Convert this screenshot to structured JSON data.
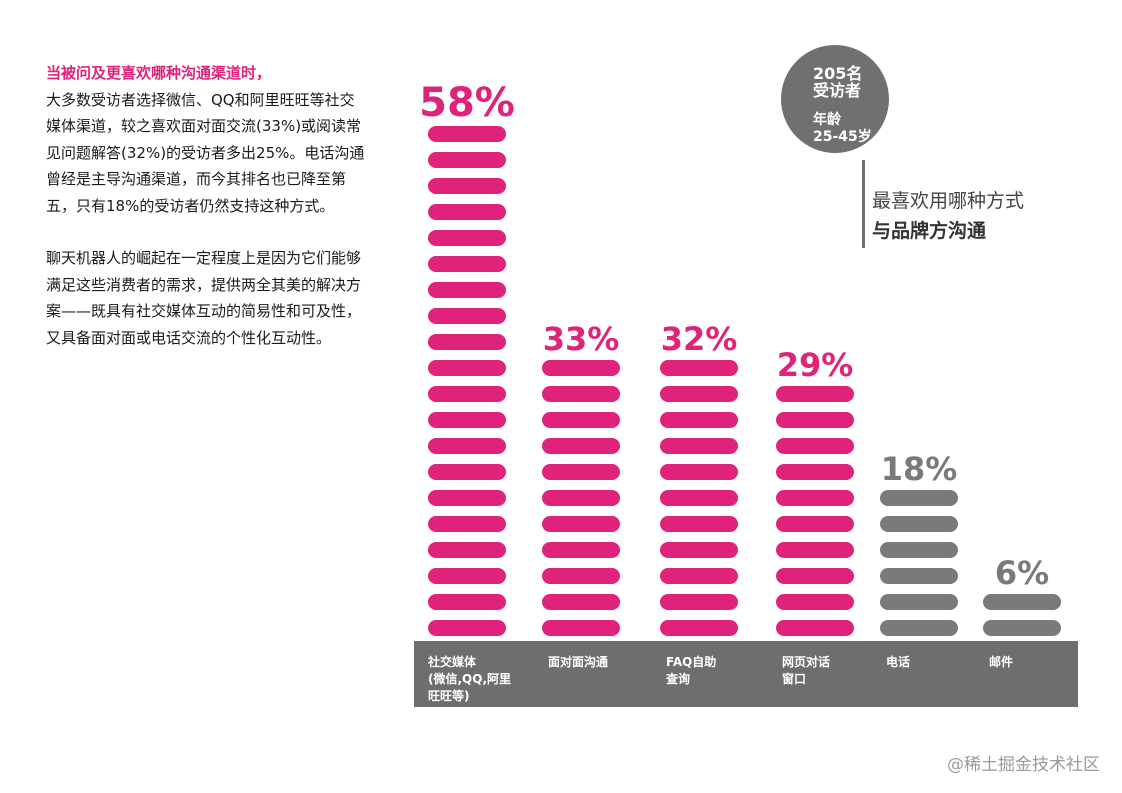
{
  "intro": {
    "lead": "当被问及更喜欢哪种沟通渠道时，",
    "paragraph1": "大多数受访者选择微信、QQ和阿里旺旺等社交媒体渠道，较之喜欢面对面交流(33%)或阅读常见问题解答(32%)的受访者多出25%。电话沟通曾经是主导沟通渠道，而今其排名也已降至第五，只有18%的受访者仍然支持这种方式。",
    "paragraph2": "聊天机器人的崛起在一定程度上是因为它们能够满足这些消费者的需求，提供两全其美的解决方案——既具有社交媒体互动的简易性和可及性，又具备面对面或电话交流的个性化互动性。"
  },
  "badge": {
    "respondents": "205名",
    "respondents_label": "受访者",
    "age_label": "年龄",
    "age_range": "25-45岁"
  },
  "question": {
    "line1": "最喜欢用哪种方式",
    "line2": "与品牌方沟通"
  },
  "watermark": "@稀土掘金技术社区",
  "colors": {
    "accent": "#e0237a",
    "muted": "#7a7a7a",
    "axis": "#6e6e6e"
  },
  "chart_data": {
    "type": "bar",
    "categories": [
      "社交媒体\n(微信,QQ,阿里\n旺旺等)",
      "面对面沟通",
      "FAQ自助\n查询",
      "网页对话\n窗口",
      "电话",
      "邮件"
    ],
    "values": [
      58,
      33,
      32,
      29,
      18,
      6
    ],
    "value_labels": [
      "58%",
      "33%",
      "32%",
      "29%",
      "18%",
      "6%"
    ],
    "highlight": [
      true,
      true,
      true,
      true,
      false,
      false
    ],
    "unit": "%",
    "ylim": [
      0,
      58
    ]
  }
}
